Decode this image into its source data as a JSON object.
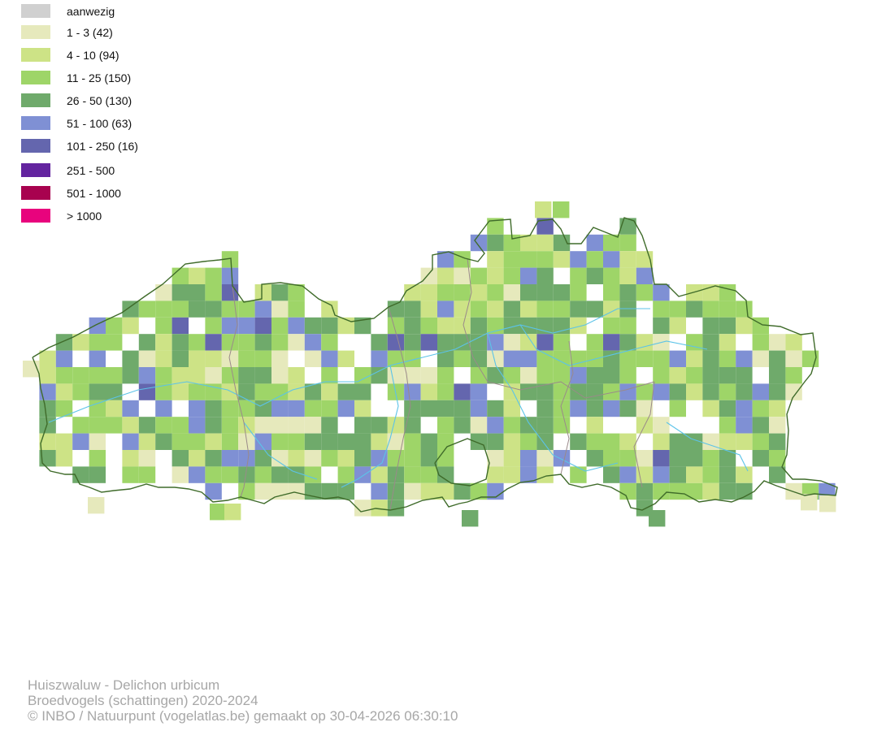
{
  "legend": {
    "items": [
      {
        "label": "aanwezig",
        "color": "#d0d0d0"
      },
      {
        "label": "1 - 3 (42)",
        "color": "#e6e9bc"
      },
      {
        "label": "4 - 10 (94)",
        "color": "#cde386"
      },
      {
        "label": "11 - 25 (150)",
        "color": "#9ed568"
      },
      {
        "label": "26 - 50 (130)",
        "color": "#6faa6b"
      },
      {
        "label": "51 - 100 (63)",
        "color": "#7f90d4"
      },
      {
        "label": "101 - 250 (16)",
        "color": "#6466ae"
      },
      {
        "label": "251 - 500",
        "color": "#63249f"
      },
      {
        "label": "501 - 1000",
        "color": "#a8024f"
      },
      {
        "label": "> 1000",
        "color": "#e8037d"
      }
    ]
  },
  "caption": {
    "species": "Huiszwaluw - Delichon urbicum",
    "dataset": "Broedvogels (schattingen) 2020-2024",
    "credit": "© INBO / Natuurpunt (vogelatlas.be) gemaakt op 30-04-2026 06:30:10"
  },
  "map": {
    "border_color": "#3f6b2a",
    "river_color": "#5cc3e8",
    "province_color": "#9a8a8a"
  }
}
